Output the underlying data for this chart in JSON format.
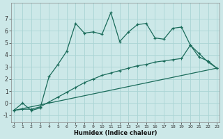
{
  "xlabel": "Humidex (Indice chaleur)",
  "bg_color": "#cce8e8",
  "grid_color": "#aad4d4",
  "line_color": "#1a6b5a",
  "xlim": [
    -0.3,
    23.3
  ],
  "ylim": [
    -1.6,
    8.3
  ],
  "yticks": [
    -1,
    0,
    1,
    2,
    3,
    4,
    5,
    6,
    7
  ],
  "xticks": [
    0,
    1,
    2,
    3,
    4,
    5,
    6,
    7,
    8,
    9,
    10,
    11,
    12,
    13,
    14,
    15,
    16,
    17,
    18,
    19,
    20,
    21,
    22,
    23
  ],
  "line1_x": [
    0,
    1,
    2,
    3,
    4,
    5,
    6,
    7,
    8,
    9,
    10,
    11,
    12,
    13,
    14,
    15,
    16,
    17,
    18,
    19,
    20,
    21,
    22,
    23
  ],
  "line1_y": [
    -0.6,
    0.0,
    -0.6,
    -0.4,
    2.2,
    3.2,
    4.3,
    6.6,
    5.8,
    5.9,
    5.7,
    7.5,
    5.1,
    5.9,
    6.5,
    6.6,
    5.4,
    5.3,
    6.2,
    6.3,
    4.8,
    4.1,
    3.4,
    2.9
  ],
  "line2_x": [
    0,
    1,
    2,
    3,
    4,
    5,
    6,
    7,
    8,
    9,
    10,
    11,
    12,
    13,
    14,
    15,
    16,
    17,
    18,
    19,
    20,
    21,
    22,
    23
  ],
  "line2_y": [
    -0.6,
    -0.5,
    -0.5,
    -0.3,
    0.1,
    0.5,
    0.9,
    1.3,
    1.7,
    2.0,
    2.3,
    2.5,
    2.7,
    2.9,
    3.1,
    3.2,
    3.4,
    3.5,
    3.6,
    3.7,
    4.8,
    3.8,
    3.5,
    2.9
  ],
  "line3_x": [
    0,
    23
  ],
  "line3_y": [
    -0.6,
    2.9
  ]
}
